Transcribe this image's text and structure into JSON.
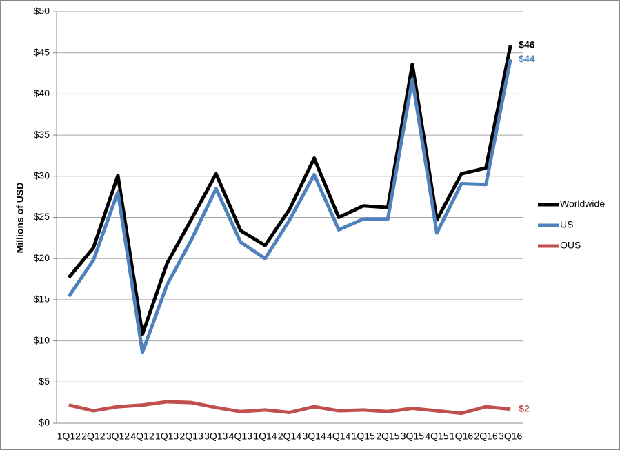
{
  "chart_data": {
    "type": "line",
    "y_axis_label": "Millions of USD",
    "categories": [
      "1Q12",
      "2Q12",
      "3Q12",
      "4Q12",
      "1Q13",
      "2Q13",
      "3Q13",
      "4Q13",
      "1Q14",
      "2Q14",
      "3Q14",
      "4Q14",
      "1Q15",
      "2Q15",
      "3Q15",
      "4Q15",
      "1Q16",
      "2Q16",
      "3Q16"
    ],
    "series": [
      {
        "name": "Worldwide",
        "color": "#000000",
        "values": [
          17.7,
          21.3,
          30.1,
          10.8,
          19.4,
          24.8,
          30.3,
          23.4,
          21.6,
          26.0,
          32.2,
          25.0,
          26.4,
          26.2,
          43.6,
          24.7,
          30.3,
          31.0,
          45.9
        ],
        "value_labels": [
          null,
          null,
          null,
          null,
          null,
          null,
          null,
          null,
          null,
          null,
          null,
          null,
          null,
          null,
          null,
          null,
          null,
          null,
          "$46"
        ]
      },
      {
        "name": "US",
        "color": "#4f81bd",
        "values": [
          15.4,
          19.8,
          28.1,
          8.6,
          16.8,
          22.3,
          28.5,
          22.0,
          20.0,
          24.7,
          30.2,
          23.5,
          24.8,
          24.8,
          41.8,
          23.1,
          29.1,
          29.0,
          44.2
        ],
        "value_labels": [
          null,
          null,
          null,
          null,
          null,
          null,
          null,
          null,
          null,
          null,
          null,
          null,
          null,
          null,
          null,
          null,
          null,
          null,
          "$44"
        ]
      },
      {
        "name": "OUS",
        "color": "#c0504d",
        "values": [
          2.2,
          1.5,
          2.0,
          2.2,
          2.6,
          2.5,
          1.9,
          1.4,
          1.6,
          1.3,
          2.0,
          1.5,
          1.6,
          1.4,
          1.8,
          1.5,
          1.2,
          2.0,
          1.7
        ],
        "value_labels": [
          null,
          null,
          null,
          null,
          null,
          null,
          null,
          null,
          null,
          null,
          null,
          null,
          null,
          null,
          null,
          null,
          null,
          null,
          "$2"
        ]
      }
    ],
    "ylim": [
      0,
      50
    ],
    "yticks": [
      {
        "value": 0,
        "label": "$0"
      },
      {
        "value": 5,
        "label": "$5"
      },
      {
        "value": 10,
        "label": "$10"
      },
      {
        "value": 15,
        "label": "$15"
      },
      {
        "value": 20,
        "label": "$20"
      },
      {
        "value": 25,
        "label": "$25"
      },
      {
        "value": 30,
        "label": "$30"
      },
      {
        "value": 35,
        "label": "$35"
      },
      {
        "value": 40,
        "label": "$40"
      },
      {
        "value": 45,
        "label": "$45"
      },
      {
        "value": 50,
        "label": "$50"
      }
    ],
    "grid": true,
    "legend": "right"
  }
}
